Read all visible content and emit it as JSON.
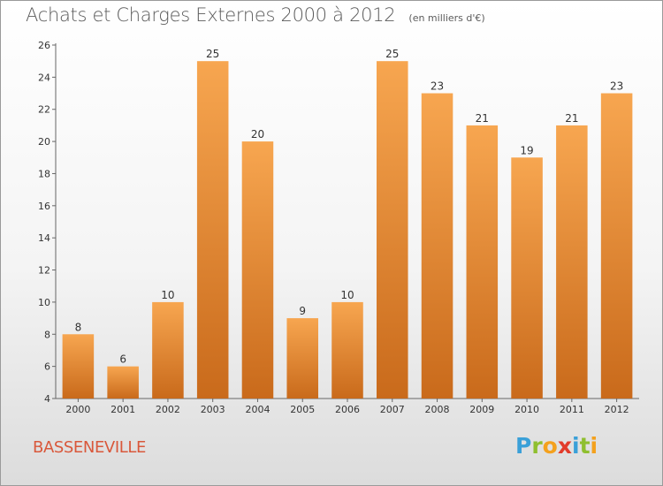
{
  "header": {
    "title": "Achats et Charges Externes 2000 à 2012",
    "subtitle": "(en milliers d'€)"
  },
  "footer": {
    "place": "BASSENEVILLE",
    "logo": {
      "letters": [
        "P",
        "r",
        "o",
        "x",
        "i",
        "t",
        "i"
      ],
      "colors": [
        "#3aa0d8",
        "#8fbf2f",
        "#f4a11d",
        "#e23b2a",
        "#3aa0d8",
        "#8fbf2f",
        "#f4a11d"
      ]
    }
  },
  "chart_data": {
    "type": "bar",
    "title": "Achats et Charges Externes 2000 à 2012",
    "subtitle": "(en milliers d'€)",
    "categories": [
      "2000",
      "2001",
      "2002",
      "2003",
      "2004",
      "2005",
      "2006",
      "2007",
      "2008",
      "2009",
      "2010",
      "2011",
      "2012"
    ],
    "values": [
      8,
      6,
      10,
      25,
      20,
      9,
      10,
      25,
      23,
      21,
      19,
      21,
      23
    ],
    "ylim": [
      4,
      26
    ],
    "yticks": [
      4,
      6,
      8,
      10,
      12,
      14,
      16,
      18,
      20,
      22,
      24,
      26
    ],
    "grid": false,
    "data_labels": true,
    "colors": {
      "bar_top": "#f7a650",
      "bar_bottom": "#c96a1b",
      "text": "#333333",
      "axis": "#666666"
    }
  }
}
